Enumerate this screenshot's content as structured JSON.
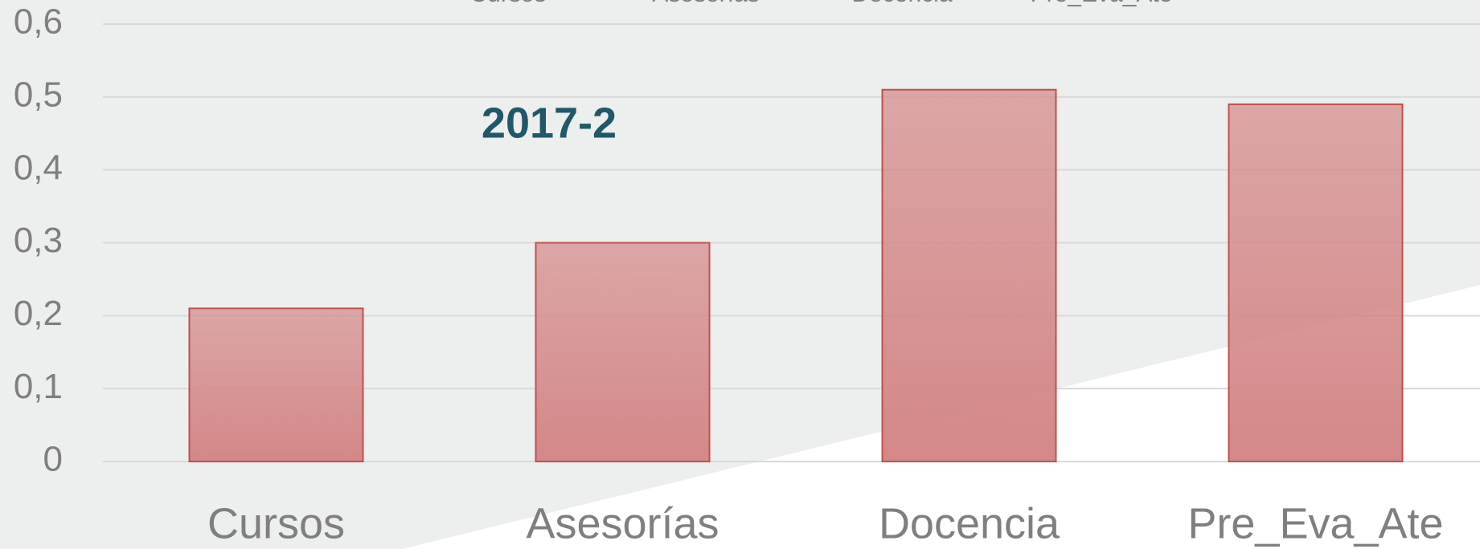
{
  "chart_data": {
    "type": "bar",
    "title": "2017-2",
    "categories": [
      "Cursos",
      "Asesorías",
      "Docencia",
      "Pre_Eva_Ate"
    ],
    "values": [
      0.21,
      0.3,
      0.51,
      0.49
    ],
    "color": "#d48788",
    "edge_color": "#c0504d",
    "ylim": [
      0,
      0.6
    ],
    "yticks": [
      0,
      {
        "value": 0.1,
        "label": "0,1"
      },
      {
        "value": 0.2,
        "label": "0,2"
      },
      {
        "value": 0.3,
        "label": "0,3"
      },
      {
        "value": 0.4,
        "label": "0,4"
      },
      {
        "value": 0.5,
        "label": "0,5"
      },
      {
        "value": 0.6,
        "label": "0,6"
      }
    ],
    "grid": true
  }
}
